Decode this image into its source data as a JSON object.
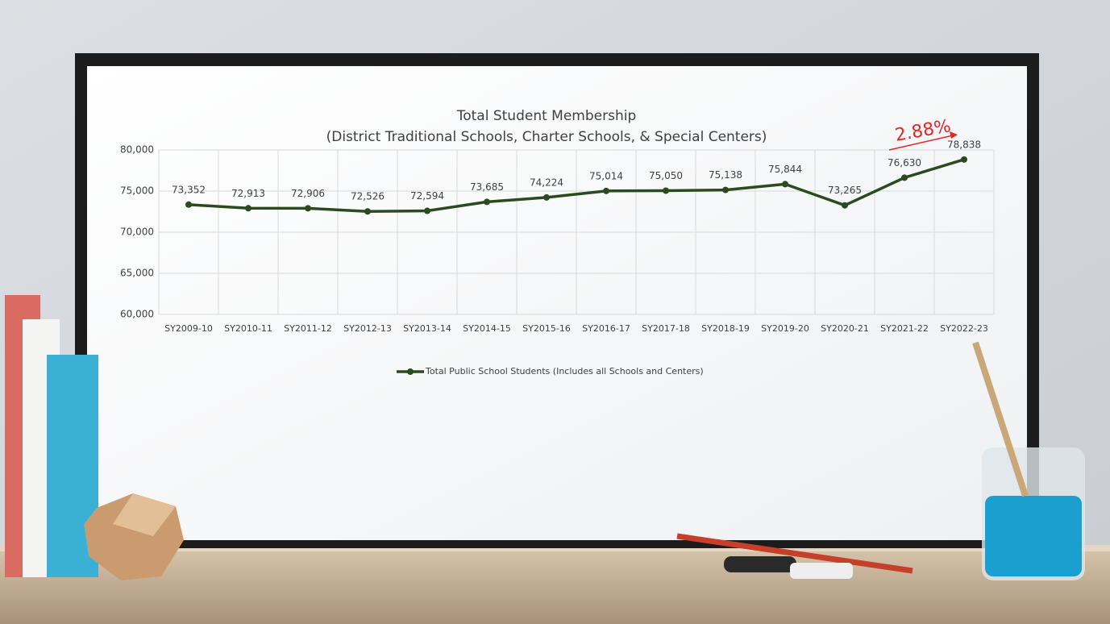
{
  "chart_data": {
    "type": "line",
    "title": "Total Student Membership",
    "subtitle": "(District Traditional Schools, Charter Schools, & Special Centers)",
    "categories": [
      "SY2009-10",
      "SY2010-11",
      "SY2011-12",
      "SY2012-13",
      "SY2013-14",
      "SY2014-15",
      "SY2015-16",
      "SY2016-17",
      "SY2017-18",
      "SY2018-19",
      "SY2019-20",
      "SY2020-21",
      "SY2021-22",
      "SY2022-23"
    ],
    "series": [
      {
        "name": "Total Public School Students (Includes all Schools and Centers)",
        "color": "#2c4a20",
        "values": [
          73352,
          72913,
          72906,
          72526,
          72594,
          73685,
          74224,
          75014,
          75050,
          75138,
          75844,
          73265,
          76630,
          78838
        ],
        "value_labels": [
          "73,352",
          "72,913",
          "72,906",
          "72,526",
          "72,594",
          "73,685",
          "74,224",
          "75,014",
          "75,050",
          "75,138",
          "75,844",
          "73,265",
          "76,630",
          "78,838"
        ]
      }
    ],
    "ylim": [
      60000,
      80000
    ],
    "yticks": [
      {
        "value": 60000,
        "label": "60,000"
      },
      {
        "value": 65000,
        "label": "65,000"
      },
      {
        "value": 70000,
        "label": "70,000"
      },
      {
        "value": 75000,
        "label": "75,000"
      },
      {
        "value": 80000,
        "label": "80,000"
      }
    ],
    "grid": true,
    "legend": "bottom",
    "annotation": "2.88%",
    "annotation_color": "#e0282a"
  }
}
